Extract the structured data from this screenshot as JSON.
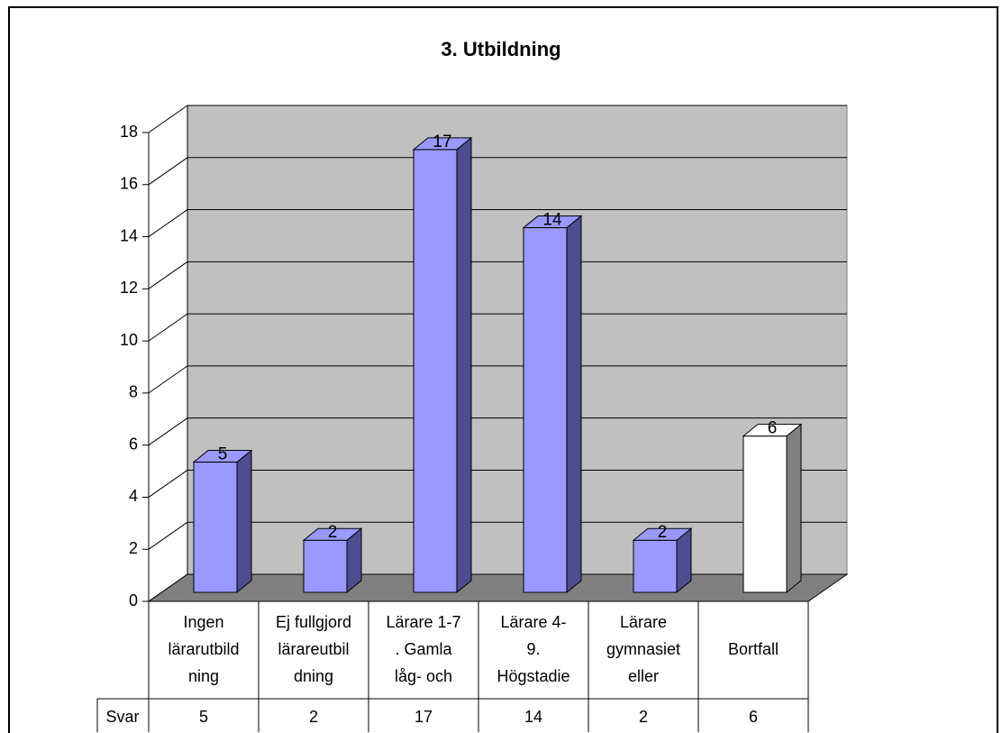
{
  "chart_data": {
    "type": "bar3d",
    "title": "3. Utbildning",
    "categories": [
      [
        "Ingen",
        "lärarutbild",
        "ning"
      ],
      [
        "Ej fullgjord",
        "lärareutbil",
        "dning"
      ],
      [
        "Lärare 1-7",
        ". Gamla",
        "låg- och"
      ],
      [
        "Lärare 4-",
        "9.",
        "Högstadie"
      ],
      [
        "Lärare",
        "gymnasiet",
        "eller"
      ],
      [
        "Bortfall"
      ]
    ],
    "series": [
      {
        "name": "Svar",
        "values": [
          5,
          2,
          17,
          14,
          2,
          6
        ],
        "colors": [
          "#9999ff",
          "#9999ff",
          "#9999ff",
          "#9999ff",
          "#9999ff",
          "#ffffff"
        ]
      }
    ],
    "ylim": [
      0,
      18
    ],
    "yticks": [
      0,
      2,
      4,
      6,
      8,
      10,
      12,
      14,
      16,
      18
    ],
    "grid": true,
    "data_table": true
  }
}
